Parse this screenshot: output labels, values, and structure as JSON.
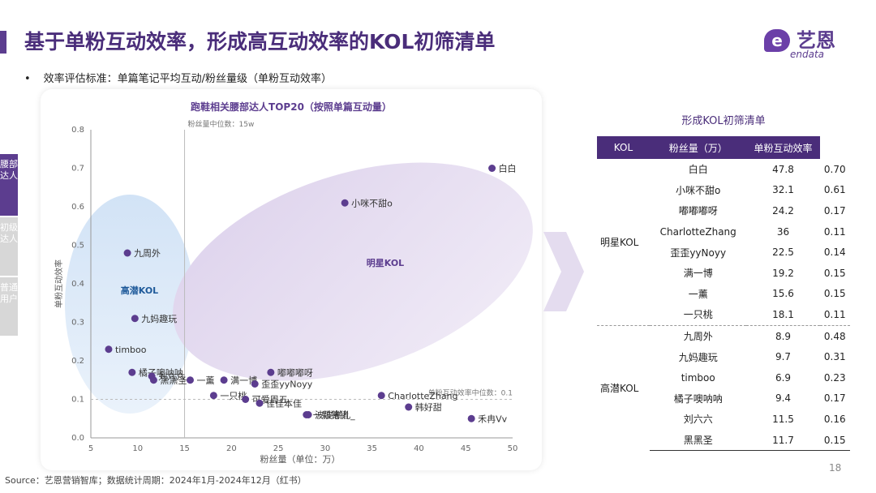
{
  "header": {
    "title": "基于单粉互动效率，形成高互动效率的KOL初筛清单",
    "logo_mark": "e",
    "logo_cn": "艺恩",
    "logo_en": "endata"
  },
  "bullet": {
    "dot": "•",
    "text": "效率评估标准：单篇笔记平均互动/粉丝量级（单粉互动效率）"
  },
  "side_tabs": [
    {
      "label": "腰部达人"
    },
    {
      "label": "初级达人"
    },
    {
      "label": "普通用户"
    }
  ],
  "colors": {
    "accent": "#4a2d7a",
    "point": "#5c3d8f",
    "blue_cluster": "#dbe8f7",
    "purple_cluster": "#e8e0f0"
  },
  "chart_data": {
    "type": "scatter",
    "title": "跑鞋相关腰部达人TOP20（按照单篇互动量）",
    "xlabel": "粉丝量（单位：万）",
    "ylabel": "单粉互动效率",
    "xlim": [
      5,
      50
    ],
    "ylim": [
      0,
      0.8
    ],
    "xticks": [
      "5",
      "10",
      "15",
      "20",
      "25",
      "30",
      "35",
      "40",
      "45",
      "50"
    ],
    "yticks": [
      "0.0",
      "0.1",
      "0.2",
      "0.3",
      "0.4",
      "0.5",
      "0.6",
      "0.7",
      "0.8"
    ],
    "ref_x": {
      "value": 15,
      "label": "粉丝量中位数：15w"
    },
    "ref_y": {
      "value": 0.1,
      "label": "单粉互动效率中位数：0.1"
    },
    "clusters": [
      {
        "name": "高潜KOL"
      },
      {
        "name": "明星KOL"
      }
    ],
    "points": [
      {
        "name": "白白",
        "x": 47.8,
        "y": 0.7
      },
      {
        "name": "小咪不甜o",
        "x": 32.1,
        "y": 0.61
      },
      {
        "name": "九周外",
        "x": 8.9,
        "y": 0.48
      },
      {
        "name": "九妈趣玩",
        "x": 9.7,
        "y": 0.31
      },
      {
        "name": "timboo",
        "x": 6.9,
        "y": 0.23
      },
      {
        "name": "橘子噢呐呐",
        "x": 9.4,
        "y": 0.17
      },
      {
        "name": "刘六六",
        "x": 11.5,
        "y": 0.16
      },
      {
        "name": "黑黑圣",
        "x": 11.7,
        "y": 0.15
      },
      {
        "name": "一薰",
        "x": 15.6,
        "y": 0.15
      },
      {
        "name": "满一博",
        "x": 19.2,
        "y": 0.15
      },
      {
        "name": "一只桃",
        "x": 18.1,
        "y": 0.11
      },
      {
        "name": "嘟嘟嘟呀",
        "x": 24.2,
        "y": 0.17
      },
      {
        "name": "歪歪yyNoyy",
        "x": 22.5,
        "y": 0.14
      },
      {
        "name": "CharlotteZhang",
        "x": 36,
        "y": 0.11
      },
      {
        "name": "可爱周五",
        "x": 21.5,
        "y": 0.1
      },
      {
        "name": "佳佳本佳",
        "x": 23.0,
        "y": 0.09
      },
      {
        "name": "一颗猪猪",
        "x": 28.0,
        "y": 0.06
      },
      {
        "name": "波波崽儿_",
        "x": 28.2,
        "y": 0.06
      },
      {
        "name": "韩好甜",
        "x": 38.9,
        "y": 0.08
      },
      {
        "name": "禾冉Vv",
        "x": 45.6,
        "y": 0.05
      }
    ]
  },
  "table": {
    "title": "形成KOL初筛清单",
    "headers": [
      "KOL",
      "粉丝量（万）",
      "单粉互动效率"
    ],
    "groups": [
      {
        "name": "明星KOL",
        "rows": [
          [
            "白白",
            "47.8",
            "0.70"
          ],
          [
            "小咪不甜o",
            "32.1",
            "0.61"
          ],
          [
            "嘟嘟嘟呀",
            "24.2",
            "0.17"
          ],
          [
            "CharlotteZhang",
            "36",
            "0.11"
          ],
          [
            "歪歪yyNoyy",
            "22.5",
            "0.14"
          ],
          [
            "满一博",
            "19.2",
            "0.15"
          ],
          [
            "一薰",
            "15.6",
            "0.15"
          ],
          [
            "一只桃",
            "18.1",
            "0.11"
          ]
        ]
      },
      {
        "name": "高潜KOL",
        "rows": [
          [
            "九周外",
            "8.9",
            "0.48"
          ],
          [
            "九妈趣玩",
            "9.7",
            "0.31"
          ],
          [
            "timboo",
            "6.9",
            "0.23"
          ],
          [
            "橘子噢呐呐",
            "9.4",
            "0.17"
          ],
          [
            "刘六六",
            "11.5",
            "0.16"
          ],
          [
            "黑黑圣",
            "11.7",
            "0.15"
          ]
        ]
      }
    ]
  },
  "footer": {
    "page_number": "18",
    "source": "Source：艺恩营销智库；数据统计周期：2024年1月-2024年12月（红书）"
  }
}
